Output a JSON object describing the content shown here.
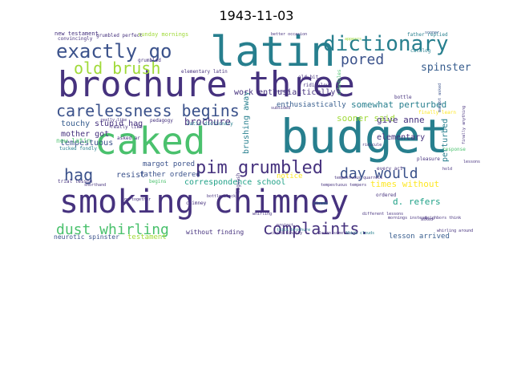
{
  "title": "1943-11-03",
  "chart_data": {
    "type": "wordcloud",
    "words": [
      {
        "text": "brochure three",
        "color": "#46327e"
      },
      {
        "text": "smoking chimney",
        "color": "#46327e"
      },
      {
        "text": "caked",
        "color": "#4ac16d"
      },
      {
        "text": "budget",
        "color": "#277f8e"
      },
      {
        "text": "latin",
        "color": "#277f8e"
      },
      {
        "text": "dictionary",
        "color": "#277f8e"
      },
      {
        "text": "exactly go",
        "color": "#3b528b"
      },
      {
        "text": "old brush",
        "color": "#a0da39"
      },
      {
        "text": "pored",
        "color": "#3b528b"
      },
      {
        "text": "carelessness begins",
        "color": "#3b528b"
      },
      {
        "text": "hag",
        "color": "#3b528b"
      },
      {
        "text": "pim grumbled",
        "color": "#46327e"
      },
      {
        "text": "day would",
        "color": "#3b528b"
      },
      {
        "text": "complaints.",
        "color": "#46327e"
      },
      {
        "text": "dust whirling",
        "color": "#4ac16d"
      },
      {
        "text": "spinster",
        "color": "#365c8d"
      },
      {
        "text": "somewhat perturbed",
        "color": "#277f8e"
      },
      {
        "text": "sooner said",
        "color": "#a0da39"
      },
      {
        "text": "give anne",
        "color": "#46327e"
      },
      {
        "text": "perturbed",
        "color": "#277f8e"
      },
      {
        "text": "elementary",
        "color": "#46327e"
      },
      {
        "text": "d. refers",
        "color": "#1fa187"
      },
      {
        "text": "times without",
        "color": "#fde725"
      },
      {
        "text": "lesson arrived",
        "color": "#365c8d"
      },
      {
        "text": "correspondence school",
        "color": "#1fa187"
      },
      {
        "text": "father ordered",
        "color": "#3b528b"
      },
      {
        "text": "margot pored",
        "color": "#3b528b"
      },
      {
        "text": "stupid hag",
        "color": "#46327e"
      },
      {
        "text": "mother got",
        "color": "#46327e"
      },
      {
        "text": "touchy",
        "color": "#365c8d"
      },
      {
        "text": "tempestuous",
        "color": "#3b528b"
      },
      {
        "text": "new latin",
        "color": "#4ac16d"
      },
      {
        "text": "resist",
        "color": "#3b528b"
      },
      {
        "text": "brochure",
        "color": "#46327e"
      },
      {
        "text": "brushing away",
        "color": "#277f8e"
      },
      {
        "text": "without finding",
        "color": "#46327e"
      },
      {
        "text": "testament",
        "color": "#a0da39"
      },
      {
        "text": "neurotic spinster",
        "color": "#3b528b"
      },
      {
        "text": "work enthusiastically",
        "color": "#46327e"
      },
      {
        "text": "enthusiastically",
        "color": "#365c8d"
      },
      {
        "text": "notice",
        "color": "#fde725"
      },
      {
        "text": "new testament",
        "color": "#46327e"
      },
      {
        "text": "sunday mornings",
        "color": "#a0da39"
      },
      {
        "text": "latin dictionary",
        "color": "#277f8e"
      },
      {
        "text": "grumbled",
        "color": "#46327e"
      },
      {
        "text": "elementary latin",
        "color": "#46327e"
      },
      {
        "text": "father replied",
        "color": "#277f8e"
      },
      {
        "text": "sooner",
        "color": "#365c8d"
      },
      {
        "text": "subsided",
        "color": "#46327e"
      },
      {
        "text": "ridiculous",
        "color": "#46327e"
      },
      {
        "text": "margot asked",
        "color": "#3b528b"
      },
      {
        "text": "learned",
        "color": "#46327e"
      },
      {
        "text": "finally learn",
        "color": "#fde725"
      },
      {
        "text": "old bit",
        "color": "#46327e"
      },
      {
        "text": "catalog",
        "color": "#277f8e"
      },
      {
        "text": "schedules",
        "color": "#4ac16d"
      },
      {
        "text": "tempestuous quarrels",
        "color": "#46327e"
      },
      {
        "text": "every act",
        "color": "#46327e"
      },
      {
        "text": "neighbors think",
        "color": "#46327e"
      },
      {
        "text": "whirling around",
        "color": "#46327e"
      },
      {
        "text": "finally anything",
        "color": "#46327e"
      },
      {
        "text": "could finally",
        "color": "#46327e"
      },
      {
        "text": "learn something",
        "color": "#46327e"
      },
      {
        "text": "thick clouds",
        "color": "#277f8e"
      },
      {
        "text": "lessons",
        "color": "#46327e"
      },
      {
        "text": "chimney",
        "color": "#46327e"
      },
      {
        "text": "hogwash",
        "color": "#46327e"
      },
      {
        "text": "mornings instead",
        "color": "#46327e"
      },
      {
        "text": "shorthand",
        "color": "#46327e"
      },
      {
        "text": "trial lesson",
        "color": "#46327e"
      },
      {
        "text": "go together",
        "color": "#46327e"
      },
      {
        "text": "begins",
        "color": "#4ac16d"
      },
      {
        "text": "really like",
        "color": "#46327e"
      },
      {
        "text": "tucked fondly",
        "color": "#277f8e"
      },
      {
        "text": "asked ar",
        "color": "#46327e"
      },
      {
        "text": "pedagogy",
        "color": "#46327e"
      },
      {
        "text": "convincingly",
        "color": "#46327e"
      },
      {
        "text": "response",
        "color": "#4ac16d"
      },
      {
        "text": "hold",
        "color": "#46327e"
      },
      {
        "text": "clouds",
        "color": "#277f8e"
      },
      {
        "text": "whirling",
        "color": "#46327e"
      },
      {
        "text": "project",
        "color": "#46327e"
      },
      {
        "text": "thick brochure",
        "color": "#277f8e"
      },
      {
        "text": "different lessons",
        "color": "#46327e"
      },
      {
        "text": "better occasion",
        "color": "#46327e"
      },
      {
        "text": "pleasure",
        "color": "#46327e"
      },
      {
        "text": "ridicule",
        "color": "#46327e"
      },
      {
        "text": "bottle",
        "color": "#46327e"
      },
      {
        "text": "bottle black",
        "color": "#46327e"
      },
      {
        "text": "grumbled perfect",
        "color": "#46327e"
      },
      {
        "text": "ordered",
        "color": "#46327e"
      },
      {
        "text": "asked",
        "color": "#46327e"
      },
      {
        "text": "tempestuous tempers",
        "color": "#46327e"
      },
      {
        "text": "really like",
        "color": "#46327e"
      },
      {
        "text": "appears",
        "color": "#a0da39"
      }
    ]
  }
}
